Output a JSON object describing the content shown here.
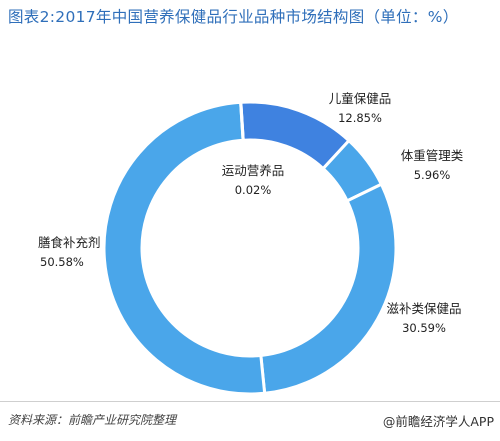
{
  "title": "图表2:2017年中国营养保健品行业品种市场结构图（单位：%）",
  "footer": {
    "source": "资料来源：前瞻产业研究院整理",
    "credit": "@前瞻经济学人APP"
  },
  "colors": {
    "title": "#2f6fba",
    "slice_dark": "#3f82e0",
    "slice_main": "#4aa6ea"
  },
  "chart_data": {
    "type": "pie",
    "title": "图表2:2017年中国营养保健品行业品种市场结构图（单位：%）",
    "unit": "%",
    "donut": true,
    "slices": [
      {
        "label": "儿童保健品",
        "value": 12.85,
        "display": "12.85%"
      },
      {
        "label": "体重管理类",
        "value": 5.96,
        "display": "5.96%"
      },
      {
        "label": "滋补类保健品",
        "value": 30.59,
        "display": "30.59%"
      },
      {
        "label": "膳食补充剂",
        "value": 50.58,
        "display": "50.58%"
      },
      {
        "label": "运动营养品",
        "value": 0.02,
        "display": "0.02%"
      }
    ]
  }
}
